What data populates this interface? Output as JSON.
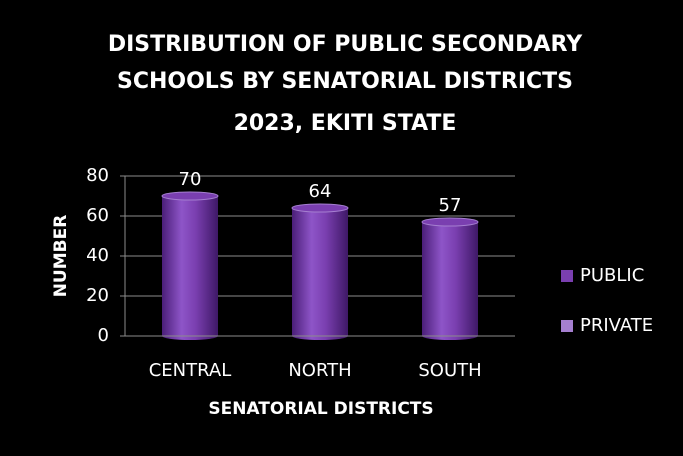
{
  "chart_data": {
    "type": "bar",
    "title": [
      "DISTRIBUTION OF PUBLIC SECONDARY",
      "SCHOOLS BY SENATORIAL DISTRICTS",
      "2023, EKITI STATE"
    ],
    "x_label": "SENATORIAL DISTRICTS",
    "y_label": "NUMBER",
    "categories": [
      "CENTRAL",
      "NORTH",
      "SOUTH"
    ],
    "series": [
      {
        "name": "PUBLIC",
        "color": "#7a3fb0",
        "values": [
          70,
          64,
          57
        ]
      },
      {
        "name": "PRIVATE",
        "color": "#a57fd0",
        "values": [
          null,
          null,
          null
        ]
      }
    ],
    "ylim": [
      0,
      80
    ],
    "yticks": [
      0,
      20,
      40,
      60,
      80
    ],
    "grid": true,
    "legend": "right"
  }
}
